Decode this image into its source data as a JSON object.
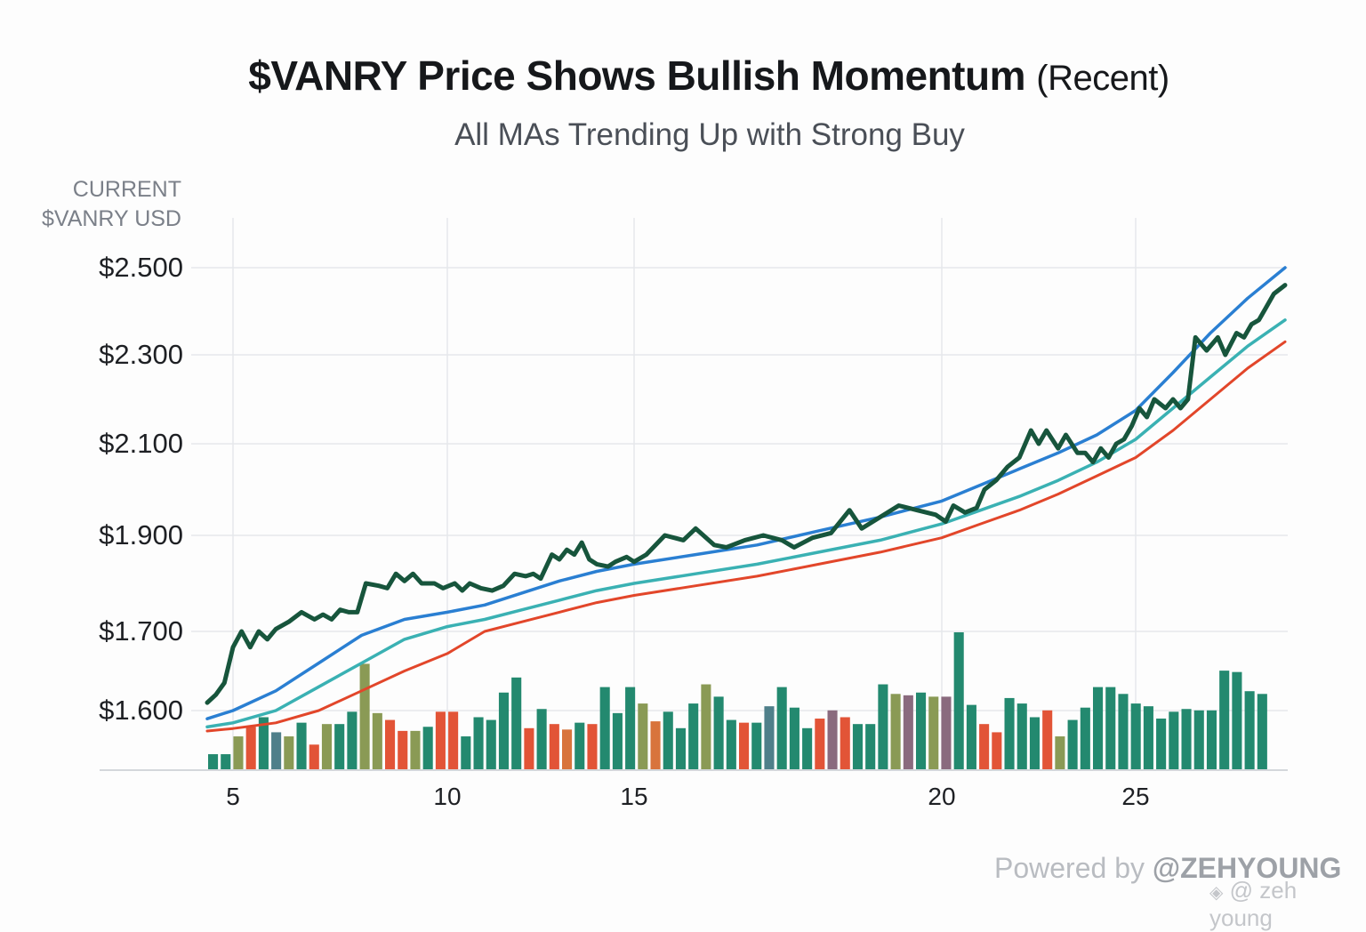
{
  "header": {
    "title_bold": "$VANRY Price Shows Bullish Momentum",
    "title_light": "(Recent)",
    "subtitle": "All MAs Trending Up with Strong Buy"
  },
  "axis": {
    "ylabel_line1": "CURRENT",
    "ylabel_line2": "$VANRY USD"
  },
  "footer": {
    "powered_prefix": "Powered by ",
    "powered_handle": "@ZEHYOUNG",
    "watermark_icon": "diamond-logo-icon",
    "watermark_text": "@ zeh young"
  },
  "colors": {
    "price": "#17553c",
    "ma_fast": "#2a7fd2",
    "ma_mid": "#3ab1b3",
    "ma_slow": "#e2462a",
    "grid": "#e6e8eb",
    "bar_teal": "#23896f",
    "bar_red": "#e25437",
    "bar_olive": "#8a9a55",
    "bar_mauve": "#8a6a7e"
  },
  "chart_data": {
    "type": "line",
    "title": "$VANRY Price Shows Bullish Momentum (Recent)",
    "subtitle": "All MAs Trending Up with Strong Buy",
    "xlabel": "",
    "ylabel": "CURRENT $VANRY USD",
    "x_ticks": [
      5,
      10,
      15,
      20,
      25
    ],
    "x_tick_labels": [
      "5",
      "10",
      "15",
      "20",
      "25"
    ],
    "y_ticks": [
      1.6,
      1.7,
      1.9,
      2.1,
      2.3,
      2.5
    ],
    "y_tick_labels": [
      "$1.600",
      "$1.700",
      "$1.900",
      "$2.100",
      "$2.300",
      "$2.500"
    ],
    "xlim": [
      4.4,
      29.0
    ],
    "grid": true,
    "legend": "none",
    "series": [
      {
        "name": "Price",
        "color": "#17553c",
        "points": [
          [
            4.4,
            1.61
          ],
          [
            4.6,
            1.62
          ],
          [
            4.8,
            1.635
          ],
          [
            5.0,
            1.68
          ],
          [
            5.2,
            1.7
          ],
          [
            5.4,
            1.68
          ],
          [
            5.6,
            1.7
          ],
          [
            5.8,
            1.69
          ],
          [
            6.0,
            1.705
          ],
          [
            6.3,
            1.72
          ],
          [
            6.6,
            1.74
          ],
          [
            6.9,
            1.725
          ],
          [
            7.1,
            1.735
          ],
          [
            7.3,
            1.725
          ],
          [
            7.5,
            1.745
          ],
          [
            7.7,
            1.74
          ],
          [
            7.9,
            1.74
          ],
          [
            8.1,
            1.8
          ],
          [
            8.4,
            1.795
          ],
          [
            8.6,
            1.79
          ],
          [
            8.8,
            1.82
          ],
          [
            9.0,
            1.805
          ],
          [
            9.2,
            1.82
          ],
          [
            9.4,
            1.8
          ],
          [
            9.7,
            1.8
          ],
          [
            9.9,
            1.79
          ],
          [
            10.2,
            1.8
          ],
          [
            10.4,
            1.785
          ],
          [
            10.6,
            1.8
          ],
          [
            10.9,
            1.79
          ],
          [
            11.2,
            1.785
          ],
          [
            11.5,
            1.795
          ],
          [
            11.8,
            1.82
          ],
          [
            12.1,
            1.815
          ],
          [
            12.3,
            1.82
          ],
          [
            12.5,
            1.81
          ],
          [
            12.8,
            1.86
          ],
          [
            13.0,
            1.85
          ],
          [
            13.2,
            1.87
          ],
          [
            13.4,
            1.86
          ],
          [
            13.6,
            1.885
          ],
          [
            13.8,
            1.85
          ],
          [
            14.0,
            1.84
          ],
          [
            14.3,
            1.835
          ],
          [
            14.5,
            1.845
          ],
          [
            14.8,
            1.855
          ],
          [
            15.0,
            1.845
          ],
          [
            15.2,
            1.86
          ],
          [
            15.5,
            1.9
          ],
          [
            15.8,
            1.89
          ],
          [
            16.0,
            1.915
          ],
          [
            16.3,
            1.88
          ],
          [
            16.5,
            1.875
          ],
          [
            16.8,
            1.89
          ],
          [
            17.1,
            1.9
          ],
          [
            17.4,
            1.89
          ],
          [
            17.6,
            1.875
          ],
          [
            17.9,
            1.895
          ],
          [
            18.2,
            1.905
          ],
          [
            18.5,
            1.955
          ],
          [
            18.7,
            1.915
          ],
          [
            19.0,
            1.94
          ],
          [
            19.3,
            1.965
          ],
          [
            19.6,
            1.955
          ],
          [
            19.9,
            1.945
          ],
          [
            20.1,
            1.93
          ],
          [
            20.3,
            1.965
          ],
          [
            20.6,
            1.95
          ],
          [
            20.9,
            1.96
          ],
          [
            21.1,
            2.0
          ],
          [
            21.4,
            2.02
          ],
          [
            21.7,
            2.05
          ],
          [
            22.0,
            2.07
          ],
          [
            22.3,
            2.13
          ],
          [
            22.5,
            2.1
          ],
          [
            22.7,
            2.13
          ],
          [
            23.0,
            2.09
          ],
          [
            23.2,
            2.12
          ],
          [
            23.5,
            2.08
          ],
          [
            23.7,
            2.08
          ],
          [
            23.9,
            2.06
          ],
          [
            24.1,
            2.09
          ],
          [
            24.3,
            2.07
          ],
          [
            24.5,
            2.1
          ],
          [
            24.7,
            2.11
          ],
          [
            24.9,
            2.14
          ],
          [
            25.1,
            2.18
          ],
          [
            25.3,
            2.16
          ],
          [
            25.5,
            2.2
          ],
          [
            25.8,
            2.18
          ],
          [
            26.0,
            2.2
          ],
          [
            26.2,
            2.18
          ],
          [
            26.4,
            2.2
          ],
          [
            26.6,
            2.34
          ],
          [
            26.9,
            2.31
          ],
          [
            27.2,
            2.34
          ],
          [
            27.4,
            2.3
          ],
          [
            27.7,
            2.35
          ],
          [
            27.9,
            2.34
          ],
          [
            28.1,
            2.37
          ],
          [
            28.3,
            2.38
          ],
          [
            28.5,
            2.41
          ],
          [
            28.7,
            2.44
          ],
          [
            29.0,
            2.46
          ]
        ]
      },
      {
        "name": "MA fast",
        "color": "#2a7fd2",
        "points": [
          [
            4.4,
            1.59
          ],
          [
            5.0,
            1.6
          ],
          [
            6.0,
            1.625
          ],
          [
            7.0,
            1.66
          ],
          [
            8.0,
            1.695
          ],
          [
            9.0,
            1.725
          ],
          [
            10.0,
            1.74
          ],
          [
            11.0,
            1.755
          ],
          [
            12.0,
            1.78
          ],
          [
            13.0,
            1.805
          ],
          [
            14.0,
            1.825
          ],
          [
            15.0,
            1.84
          ],
          [
            16.0,
            1.86
          ],
          [
            17.0,
            1.88
          ],
          [
            18.0,
            1.91
          ],
          [
            19.0,
            1.94
          ],
          [
            20.0,
            1.975
          ],
          [
            21.0,
            2.01
          ],
          [
            22.0,
            2.045
          ],
          [
            23.0,
            2.08
          ],
          [
            24.0,
            2.12
          ],
          [
            25.0,
            2.175
          ],
          [
            26.0,
            2.26
          ],
          [
            27.0,
            2.35
          ],
          [
            28.0,
            2.43
          ],
          [
            29.0,
            2.5
          ]
        ]
      },
      {
        "name": "MA mid",
        "color": "#3ab1b3",
        "points": [
          [
            4.4,
            1.58
          ],
          [
            5.0,
            1.585
          ],
          [
            6.0,
            1.6
          ],
          [
            7.0,
            1.63
          ],
          [
            8.0,
            1.66
          ],
          [
            9.0,
            1.69
          ],
          [
            10.0,
            1.71
          ],
          [
            11.0,
            1.725
          ],
          [
            12.0,
            1.745
          ],
          [
            13.0,
            1.765
          ],
          [
            14.0,
            1.785
          ],
          [
            15.0,
            1.8
          ],
          [
            16.0,
            1.82
          ],
          [
            17.0,
            1.84
          ],
          [
            18.0,
            1.865
          ],
          [
            19.0,
            1.89
          ],
          [
            20.0,
            1.925
          ],
          [
            21.0,
            1.955
          ],
          [
            22.0,
            1.985
          ],
          [
            23.0,
            2.02
          ],
          [
            24.0,
            2.06
          ],
          [
            25.0,
            2.11
          ],
          [
            26.0,
            2.18
          ],
          [
            27.0,
            2.25
          ],
          [
            28.0,
            2.32
          ],
          [
            29.0,
            2.38
          ]
        ]
      },
      {
        "name": "MA slow",
        "color": "#e2462a",
        "points": [
          [
            4.4,
            1.575
          ],
          [
            5.0,
            1.578
          ],
          [
            6.0,
            1.585
          ],
          [
            7.0,
            1.6
          ],
          [
            8.0,
            1.625
          ],
          [
            9.0,
            1.65
          ],
          [
            10.0,
            1.672
          ],
          [
            11.0,
            1.7
          ],
          [
            12.0,
            1.72
          ],
          [
            13.0,
            1.74
          ],
          [
            14.0,
            1.76
          ],
          [
            15.0,
            1.775
          ],
          [
            16.0,
            1.795
          ],
          [
            17.0,
            1.815
          ],
          [
            18.0,
            1.84
          ],
          [
            19.0,
            1.865
          ],
          [
            20.0,
            1.895
          ],
          [
            21.0,
            1.925
          ],
          [
            22.0,
            1.955
          ],
          [
            23.0,
            1.99
          ],
          [
            24.0,
            2.03
          ],
          [
            25.0,
            2.07
          ],
          [
            26.0,
            2.13
          ],
          [
            27.0,
            2.2
          ],
          [
            28.0,
            2.27
          ],
          [
            29.0,
            2.33
          ]
        ]
      }
    ],
    "volume": {
      "unit": "relative (tallest = 100)",
      "values": [
        11,
        11,
        24,
        31,
        38,
        27,
        24,
        34,
        18,
        33,
        33,
        42,
        77,
        41,
        36,
        28,
        28,
        31,
        42,
        42,
        24,
        38,
        36,
        56,
        67,
        30,
        44,
        33,
        29,
        34,
        33,
        60,
        41,
        60,
        48,
        35,
        42,
        30,
        48,
        62,
        53,
        36,
        34,
        34,
        46,
        60,
        45,
        30,
        37,
        43,
        38,
        33,
        33,
        62,
        55,
        54,
        56,
        53,
        53,
        100,
        47,
        33,
        27,
        52,
        48,
        38,
        43,
        24,
        36,
        45,
        60,
        60,
        55,
        48,
        46,
        37,
        42,
        44,
        43,
        43,
        72,
        71,
        57,
        55
      ],
      "colors": [
        "teal",
        "teal",
        "olive",
        "red",
        "teal",
        "slate",
        "olive",
        "teal",
        "red",
        "olive",
        "teal",
        "teal",
        "olive",
        "olive",
        "red",
        "red",
        "olive",
        "teal",
        "red",
        "red",
        "teal",
        "teal",
        "teal",
        "teal",
        "teal",
        "red",
        "teal",
        "red",
        "orange",
        "teal",
        "red",
        "teal",
        "teal",
        "teal",
        "olive",
        "orange",
        "teal",
        "teal",
        "teal",
        "olive",
        "teal",
        "teal",
        "red",
        "teal",
        "slate",
        "teal",
        "teal",
        "teal",
        "red",
        "mauve",
        "red",
        "teal",
        "teal",
        "teal",
        "olive",
        "mauve",
        "teal",
        "olive",
        "mauve",
        "teal",
        "teal",
        "red",
        "red",
        "teal",
        "teal",
        "teal",
        "red",
        "olive",
        "teal",
        "teal",
        "teal",
        "teal",
        "teal",
        "teal",
        "teal",
        "teal",
        "teal",
        "teal",
        "teal",
        "teal",
        "teal",
        "teal",
        "teal",
        "teal"
      ]
    }
  }
}
